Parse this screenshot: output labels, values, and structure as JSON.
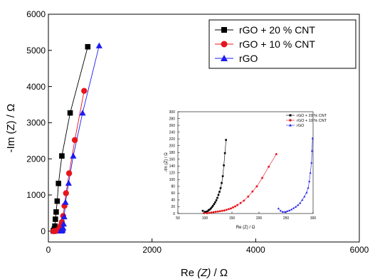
{
  "chart_data": [
    {
      "id": "main",
      "type": "scatter",
      "xlabel_base": "Re ",
      "xlabel_italic": "(Z)",
      "xlabel_tail": " / Ω",
      "ylabel": "-Im (Z) / Ω",
      "xlim": [
        0,
        6000
      ],
      "ylim": [
        -300,
        6000
      ],
      "xticks": [
        0,
        2000,
        4000,
        6000
      ],
      "yticks": [
        0,
        1000,
        2000,
        3000,
        4000,
        5000,
        6000
      ],
      "legend_position": "top-right",
      "series": [
        {
          "name": "rGO + 20 % CNT",
          "color": "#000000",
          "marker": "square",
          "points": [
            [
              95,
              5
            ],
            [
              105,
              20
            ],
            [
              115,
              60
            ],
            [
              125,
              140
            ],
            [
              135,
              330
            ],
            [
              150,
              530
            ],
            [
              170,
              830
            ],
            [
              195,
              1320
            ],
            [
              260,
              2080
            ],
            [
              420,
              3270
            ],
            [
              760,
              5100
            ]
          ]
        },
        {
          "name": "rGO + 10 % CNT",
          "color": "#e8141c",
          "marker": "circle",
          "points": [
            [
              100,
              0
            ],
            [
              120,
              2
            ],
            [
              140,
              5
            ],
            [
              160,
              10
            ],
            [
              180,
              25
            ],
            [
              200,
              50
            ],
            [
              220,
              100
            ],
            [
              240,
              160
            ],
            [
              260,
              250
            ],
            [
              285,
              420
            ],
            [
              310,
              700
            ],
            [
              340,
              1050
            ],
            [
              400,
              1600
            ],
            [
              510,
              2520
            ],
            [
              690,
              3880
            ]
          ]
        },
        {
          "name": "rGO",
          "color": "#1c1cf0",
          "marker": "triangle",
          "points": [
            [
              235,
              15
            ],
            [
              250,
              5
            ],
            [
              265,
              20
            ],
            [
              275,
              40
            ],
            [
              285,
              90
            ],
            [
              295,
              200
            ],
            [
              305,
              400
            ],
            [
              330,
              800
            ],
            [
              390,
              1330
            ],
            [
              480,
              2080
            ],
            [
              660,
              3270
            ],
            [
              980,
              5130
            ]
          ]
        }
      ]
    },
    {
      "id": "inset",
      "type": "scatter",
      "xlabel": "Re (Z) / Ω",
      "ylabel": "-Im (Z) / Ω",
      "xlim": [
        50,
        300
      ],
      "ylim": [
        0,
        300
      ],
      "xticks": [
        50,
        100,
        150,
        200,
        250,
        300
      ],
      "yticks": [
        0,
        20,
        40,
        60,
        80,
        100,
        120,
        140,
        160,
        180,
        200,
        220,
        240,
        260,
        280,
        300
      ],
      "legend_position": "top-left",
      "series": [
        {
          "name": "rGO + 20 % CNT",
          "color": "#000000",
          "marker": "square",
          "points": [
            [
              96,
              8
            ],
            [
              100,
              5
            ],
            [
              103,
              5
            ],
            [
              105,
              7
            ],
            [
              107,
              10
            ],
            [
              109,
              12
            ],
            [
              111,
              15
            ],
            [
              113,
              19
            ],
            [
              115,
              23
            ],
            [
              117,
              28
            ],
            [
              119,
              33
            ],
            [
              121,
              39
            ],
            [
              123,
              46
            ],
            [
              125,
              55
            ],
            [
              127,
              64
            ],
            [
              129,
              75
            ],
            [
              131,
              90
            ],
            [
              133,
              110
            ],
            [
              135,
              142
            ],
            [
              137,
              178
            ],
            [
              139,
              217
            ]
          ]
        },
        {
          "name": "rGO + 10 % CNT",
          "color": "#e8141c",
          "marker": "circle",
          "points": [
            [
              98,
              1
            ],
            [
              104,
              1
            ],
            [
              108,
              2
            ],
            [
              112,
              3
            ],
            [
              116,
              4
            ],
            [
              120,
              5
            ],
            [
              124,
              6
            ],
            [
              128,
              7
            ],
            [
              132,
              8
            ],
            [
              136,
              9
            ],
            [
              140,
              11
            ],
            [
              144,
              13
            ],
            [
              148,
              15
            ],
            [
              152,
              18
            ],
            [
              156,
              21
            ],
            [
              160,
              25
            ],
            [
              166,
              31
            ],
            [
              172,
              38
            ],
            [
              180,
              50
            ],
            [
              188,
              65
            ],
            [
              196,
              80
            ],
            [
              206,
              105
            ],
            [
              218,
              138
            ],
            [
              232,
              175
            ]
          ]
        },
        {
          "name": "rGO",
          "color": "#1c1cf0",
          "marker": "triangle",
          "points": [
            [
              236,
              15
            ],
            [
              240,
              8
            ],
            [
              244,
              5
            ],
            [
              248,
              5
            ],
            [
              252,
              7
            ],
            [
              256,
              9
            ],
            [
              260,
              12
            ],
            [
              264,
              16
            ],
            [
              268,
              20
            ],
            [
              272,
              25
            ],
            [
              276,
              31
            ],
            [
              280,
              40
            ],
            [
              284,
              50
            ],
            [
              288,
              62
            ],
            [
              291,
              76
            ],
            [
              293,
              95
            ],
            [
              295,
              120
            ],
            [
              297,
              150
            ],
            [
              298,
              185
            ],
            [
              299,
              222
            ]
          ]
        }
      ]
    }
  ]
}
